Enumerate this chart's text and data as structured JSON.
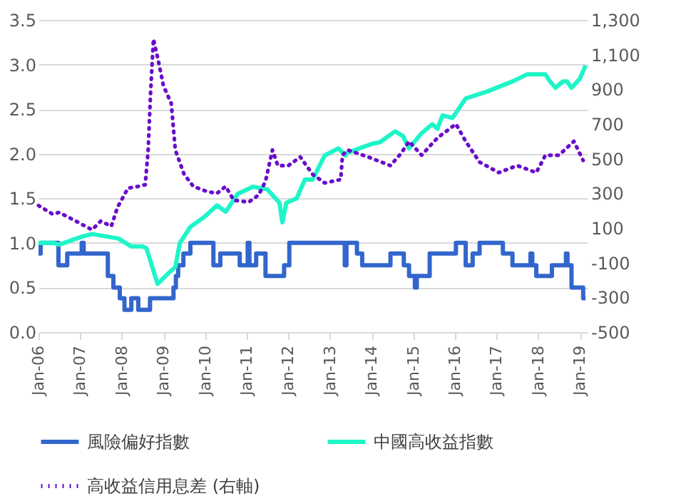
{
  "chart_data": {
    "type": "line",
    "ylim": [
      0,
      3.5
    ],
    "yticks": [
      {
        "value": 0,
        "label": "0.0"
      },
      0.5,
      {
        "value": 1,
        "label": "1.0"
      },
      1.5,
      {
        "value": 2,
        "label": "2.0"
      },
      2.5,
      {
        "value": 3,
        "label": "3.0"
      },
      3.5
    ],
    "y2lim": [
      -500,
      1300
    ],
    "y2ticks": [
      -500,
      -300,
      -100,
      100,
      300,
      500,
      700,
      900,
      {
        "value": 1100,
        "label": "1,100"
      },
      {
        "value": 1300,
        "label": "1,300"
      }
    ],
    "xlim": [
      "2006-01-01",
      "2019-03-10"
    ],
    "xticks": [
      {
        "value": "2006-01-01",
        "label": "Jan-06"
      },
      {
        "value": "2007-01-01",
        "label": "Jan-07"
      },
      {
        "value": "2008-01-01",
        "label": "Jan-08"
      },
      {
        "value": "2009-01-01",
        "label": "Jan-09"
      },
      {
        "value": "2010-01-01",
        "label": "Jan-10"
      },
      {
        "value": "2011-01-01",
        "label": "Jan-11"
      },
      {
        "value": "2012-01-01",
        "label": "Jan-12"
      },
      {
        "value": "2013-01-01",
        "label": "Jan-13"
      },
      {
        "value": "2014-01-01",
        "label": "Jan-14"
      },
      {
        "value": "2015-01-01",
        "label": "Jan-15"
      },
      {
        "value": "2016-01-01",
        "label": "Jan-16"
      },
      {
        "value": "2017-01-01",
        "label": "Jan-17"
      },
      {
        "value": "2018-01-01",
        "label": "Jan-18"
      },
      {
        "value": "2019-01-01",
        "label": "Jan-19"
      }
    ],
    "grid": "y",
    "legend": "bottom",
    "series": [
      {
        "name": "風險偏好指數",
        "type": "step",
        "color": "#3366cc",
        "line_style": "solid",
        "x": [
          "2006-01-01",
          "2006-01-20",
          "2006-06-25",
          "2006-09-10",
          "2007-01-15",
          "2007-02-01",
          "2007-09-01",
          "2007-10-20",
          "2007-12-15",
          "2008-01-25",
          "2008-03-25",
          "2008-05-25",
          "2008-09-05",
          "2009-03-30",
          "2009-04-20",
          "2009-05-10",
          "2009-06-25",
          "2009-08-25",
          "2010-03-15",
          "2010-05-15",
          "2010-11-01",
          "2011-01-10",
          "2011-01-25",
          "2011-03-25",
          "2011-06-15",
          "2011-11-25",
          "2012-01-10",
          "2013-05-10",
          "2013-05-25",
          "2013-08-25",
          "2013-10-10",
          "2014-06-15",
          "2014-10-10",
          "2014-11-25",
          "2015-01-15",
          "2015-02-01",
          "2015-05-25",
          "2016-01-10",
          "2016-04-05",
          "2016-06-05",
          "2016-08-05",
          "2017-02-25",
          "2017-05-20",
          "2017-10-25",
          "2017-11-10",
          "2017-12-15",
          "2018-05-01",
          "2018-09-01",
          "2018-09-15",
          "2018-10-20",
          "2019-01-30",
          "2019-02-20"
        ],
        "values": [
          0.88,
          1,
          0.75,
          0.88,
          1,
          0.88,
          0.63,
          0.5,
          0.38,
          0.25,
          0.38,
          0.25,
          0.38,
          0.5,
          0.63,
          0.75,
          0.88,
          1,
          0.75,
          0.88,
          0.75,
          1,
          0.75,
          0.88,
          0.63,
          0.75,
          1,
          0.75,
          1,
          0.88,
          0.75,
          0.88,
          0.75,
          0.63,
          0.5,
          0.63,
          0.88,
          1,
          0.75,
          0.88,
          1,
          0.88,
          0.75,
          0.88,
          0.75,
          0.63,
          0.75,
          0.88,
          0.75,
          0.5,
          0.38,
          0.38
        ]
      },
      {
        "name": "中國高收益指數",
        "type": "line",
        "color": "#1ef5c8",
        "line_style": "solid",
        "x": [
          "2006-01-01",
          "2006-05-15",
          "2006-07-01",
          "2007-01-15",
          "2007-04-15",
          "2007-12-01",
          "2008-03-25",
          "2008-07-01",
          "2008-08-05",
          "2008-11-10",
          "2009-02-05",
          "2009-04-15",
          "2009-05-25",
          "2009-08-25",
          "2009-12-25",
          "2010-04-15",
          "2010-07-01",
          "2010-10-15",
          "2011-02-25",
          "2011-07-01",
          "2011-10-15",
          "2011-11-10",
          "2011-12-15",
          "2012-03-15",
          "2012-05-25",
          "2012-08-01",
          "2012-11-15",
          "2013-03-15",
          "2013-05-15",
          "2013-06-01",
          "2014-01-01",
          "2014-03-15",
          "2014-07-25",
          "2014-10-01",
          "2014-11-25",
          "2015-03-15",
          "2015-06-15",
          "2015-08-01",
          "2015-09-15",
          "2015-12-10",
          "2016-04-05",
          "2016-10-15",
          "2017-01-20",
          "2017-05-20",
          "2017-09-25",
          "2018-03-05",
          "2018-04-15",
          "2018-06-01",
          "2018-08-05",
          "2018-09-10",
          "2018-10-20",
          "2019-01-01",
          "2019-02-20"
        ],
        "values": [
          1.0,
          1.0,
          0.98,
          1.07,
          1.1,
          1.05,
          0.96,
          0.96,
          0.94,
          0.54,
          0.65,
          0.73,
          1.0,
          1.18,
          1.29,
          1.42,
          1.35,
          1.55,
          1.63,
          1.6,
          1.45,
          1.23,
          1.45,
          1.5,
          1.71,
          1.71,
          1.98,
          2.06,
          1.98,
          2.01,
          2.11,
          2.13,
          2.25,
          2.2,
          2.06,
          2.23,
          2.33,
          2.28,
          2.43,
          2.4,
          2.62,
          2.7,
          2.75,
          2.81,
          2.89,
          2.89,
          2.81,
          2.74,
          2.81,
          2.81,
          2.74,
          2.84,
          2.99
        ]
      },
      {
        "name": "高收益信用息差 (右軸)",
        "type": "line",
        "axis": "y2",
        "color": "#6a0dcc",
        "line_style": "dotted",
        "x": [
          "2006-01-01",
          "2006-05-05",
          "2006-07-01",
          "2006-11-25",
          "2007-04-15",
          "2007-07-01",
          "2007-10-01",
          "2007-11-25",
          "2008-02-25",
          "2008-05-25",
          "2008-07-25",
          "2008-08-20",
          "2008-09-10",
          "2008-10-05",
          "2008-11-15",
          "2009-01-01",
          "2009-03-10",
          "2009-04-15",
          "2009-07-01",
          "2009-09-20",
          "2010-01-20",
          "2010-04-15",
          "2010-07-01",
          "2010-09-10",
          "2011-01-20",
          "2011-04-15",
          "2011-06-15",
          "2011-08-15",
          "2011-10-01",
          "2012-01-01",
          "2012-04-15",
          "2012-08-01",
          "2012-11-15",
          "2013-04-05",
          "2013-04-20",
          "2013-06-05",
          "2013-12-01",
          "2014-06-15",
          "2014-09-15",
          "2014-11-25",
          "2015-03-15",
          "2015-08-01",
          "2016-01-10",
          "2016-04-05",
          "2016-08-05",
          "2017-01-20",
          "2017-07-01",
          "2017-12-15",
          "2018-03-05",
          "2018-07-01",
          "2018-11-10",
          "2019-01-30"
        ],
        "values": [
          230,
          180,
          190,
          140,
          90,
          140,
          110,
          220,
          330,
          340,
          350,
          550,
          880,
          1190,
          1070,
          920,
          820,
          550,
          410,
          340,
          310,
          300,
          340,
          260,
          250,
          290,
          370,
          550,
          460,
          460,
          510,
          410,
          360,
          380,
          520,
          550,
          510,
          460,
          530,
          600,
          520,
          620,
          700,
          600,
          480,
          420,
          460,
          420,
          520,
          520,
          600,
          490
        ]
      }
    ]
  }
}
